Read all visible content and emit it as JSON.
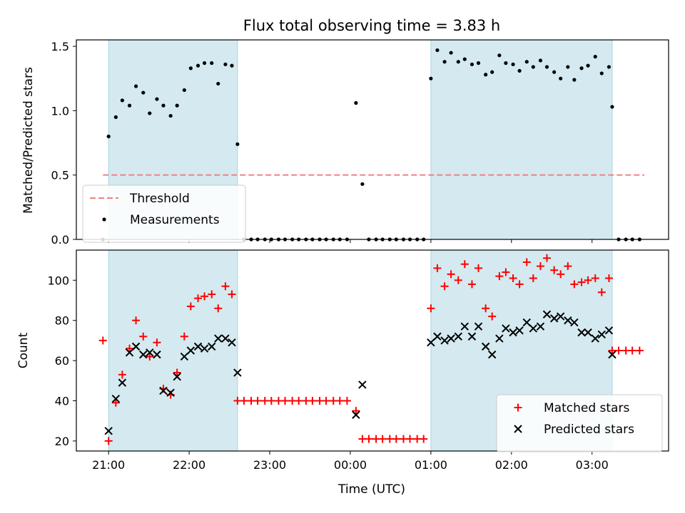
{
  "figure": {
    "title": "Flux total observing time = 3.83 h"
  },
  "chart_data": [
    {
      "type": "scatter",
      "panel": "top",
      "title": "Flux total observing time = 3.83 h",
      "xlabel": "",
      "ylabel": "Matched/Predicted stars",
      "x_unit": "hours since 21:00 UTC",
      "xlim": [
        -0.4,
        6.95
      ],
      "ylim": [
        0,
        1.55
      ],
      "yticks": [
        0.0,
        0.5,
        1.0,
        1.5
      ],
      "ytick_labels": [
        "0.0",
        "0.5",
        "1.0",
        "1.5"
      ],
      "shaded_intervals": [
        [
          0.0,
          1.6
        ],
        [
          4.0,
          6.25
        ]
      ],
      "shade_color": "#d4eaf0",
      "threshold": {
        "name": "Threshold",
        "y": 0.5,
        "x_range": [
          -0.07,
          6.65
        ],
        "color": "#f08080"
      },
      "legend": {
        "position": "lower-left",
        "entries": [
          "Threshold",
          "Measurements"
        ]
      },
      "series": [
        {
          "name": "Measurements",
          "color": "#000000",
          "points": [
            [
              -0.07,
              0.0
            ],
            [
              0.0,
              0.8
            ],
            [
              0.09,
              0.95
            ],
            [
              0.17,
              1.08
            ],
            [
              0.26,
              1.04
            ],
            [
              0.34,
              1.19
            ],
            [
              0.43,
              1.14
            ],
            [
              0.51,
              0.98
            ],
            [
              0.6,
              1.09
            ],
            [
              0.68,
              1.04
            ],
            [
              0.77,
              0.96
            ],
            [
              0.85,
              1.04
            ],
            [
              0.94,
              1.16
            ],
            [
              1.02,
              1.33
            ],
            [
              1.11,
              1.35
            ],
            [
              1.19,
              1.37
            ],
            [
              1.28,
              1.37
            ],
            [
              1.36,
              1.21
            ],
            [
              1.45,
              1.36
            ],
            [
              1.53,
              1.35
            ],
            [
              1.6,
              0.74
            ],
            [
              1.68,
              0.0
            ],
            [
              1.77,
              0.0
            ],
            [
              1.85,
              0.0
            ],
            [
              1.94,
              0.0
            ],
            [
              2.02,
              0.0
            ],
            [
              2.11,
              0.0
            ],
            [
              2.19,
              0.0
            ],
            [
              2.28,
              0.0
            ],
            [
              2.36,
              0.0
            ],
            [
              2.45,
              0.0
            ],
            [
              2.53,
              0.0
            ],
            [
              2.62,
              0.0
            ],
            [
              2.7,
              0.0
            ],
            [
              2.79,
              0.0
            ],
            [
              2.87,
              0.0
            ],
            [
              2.96,
              0.0
            ],
            [
              3.07,
              1.06
            ],
            [
              3.15,
              0.43
            ],
            [
              3.23,
              0.0
            ],
            [
              3.32,
              0.0
            ],
            [
              3.4,
              0.0
            ],
            [
              3.49,
              0.0
            ],
            [
              3.57,
              0.0
            ],
            [
              3.66,
              0.0
            ],
            [
              3.74,
              0.0
            ],
            [
              3.83,
              0.0
            ],
            [
              3.91,
              0.0
            ],
            [
              4.0,
              1.25
            ],
            [
              4.08,
              1.47
            ],
            [
              4.17,
              1.38
            ],
            [
              4.25,
              1.45
            ],
            [
              4.34,
              1.38
            ],
            [
              4.42,
              1.4
            ],
            [
              4.51,
              1.36
            ],
            [
              4.59,
              1.37
            ],
            [
              4.68,
              1.28
            ],
            [
              4.76,
              1.3
            ],
            [
              4.85,
              1.43
            ],
            [
              4.93,
              1.37
            ],
            [
              5.02,
              1.36
            ],
            [
              5.1,
              1.31
            ],
            [
              5.19,
              1.38
            ],
            [
              5.27,
              1.34
            ],
            [
              5.36,
              1.39
            ],
            [
              5.44,
              1.34
            ],
            [
              5.53,
              1.3
            ],
            [
              5.61,
              1.25
            ],
            [
              5.7,
              1.34
            ],
            [
              5.78,
              1.24
            ],
            [
              5.87,
              1.33
            ],
            [
              5.95,
              1.35
            ],
            [
              6.04,
              1.42
            ],
            [
              6.12,
              1.29
            ],
            [
              6.21,
              1.34
            ],
            [
              6.25,
              1.03
            ],
            [
              6.33,
              0.0
            ],
            [
              6.42,
              0.0
            ],
            [
              6.5,
              0.0
            ],
            [
              6.59,
              0.0
            ]
          ]
        }
      ]
    },
    {
      "type": "scatter",
      "panel": "bottom",
      "xlabel": "Time (UTC)",
      "ylabel": "Count",
      "x_unit": "hours since 21:00 UTC",
      "xlim": [
        -0.4,
        6.95
      ],
      "ylim": [
        15,
        115
      ],
      "xticks": [
        0,
        1,
        2,
        3,
        4,
        5,
        6
      ],
      "xtick_labels": [
        "21:00",
        "22:00",
        "23:00",
        "00:00",
        "01:00",
        "02:00",
        "03:00"
      ],
      "yticks": [
        20,
        40,
        60,
        80,
        100
      ],
      "ytick_labels": [
        "20",
        "40",
        "60",
        "80",
        "100"
      ],
      "shaded_intervals": [
        [
          0.0,
          1.6
        ],
        [
          4.0,
          6.25
        ]
      ],
      "legend": {
        "position": "lower-right",
        "entries": [
          "Matched stars",
          "Predicted stars"
        ]
      },
      "series": [
        {
          "name": "Matched stars",
          "marker": "plus",
          "color": "#ff0000",
          "points": [
            [
              -0.07,
              70
            ],
            [
              0.0,
              20
            ],
            [
              0.09,
              39
            ],
            [
              0.17,
              53
            ],
            [
              0.26,
              66
            ],
            [
              0.34,
              80
            ],
            [
              0.43,
              72
            ],
            [
              0.51,
              62
            ],
            [
              0.6,
              69
            ],
            [
              0.68,
              46
            ],
            [
              0.77,
              43
            ],
            [
              0.85,
              54
            ],
            [
              0.94,
              72
            ],
            [
              1.02,
              87
            ],
            [
              1.11,
              91
            ],
            [
              1.19,
              92
            ],
            [
              1.28,
              93
            ],
            [
              1.36,
              86
            ],
            [
              1.45,
              97
            ],
            [
              1.53,
              93
            ],
            [
              1.6,
              40
            ],
            [
              1.68,
              40
            ],
            [
              1.77,
              40
            ],
            [
              1.85,
              40
            ],
            [
              1.94,
              40
            ],
            [
              2.02,
              40
            ],
            [
              2.11,
              40
            ],
            [
              2.19,
              40
            ],
            [
              2.28,
              40
            ],
            [
              2.36,
              40
            ],
            [
              2.45,
              40
            ],
            [
              2.53,
              40
            ],
            [
              2.62,
              40
            ],
            [
              2.7,
              40
            ],
            [
              2.79,
              40
            ],
            [
              2.87,
              40
            ],
            [
              2.96,
              40
            ],
            [
              3.07,
              35
            ],
            [
              3.15,
              21
            ],
            [
              3.23,
              21
            ],
            [
              3.32,
              21
            ],
            [
              3.4,
              21
            ],
            [
              3.49,
              21
            ],
            [
              3.57,
              21
            ],
            [
              3.66,
              21
            ],
            [
              3.74,
              21
            ],
            [
              3.83,
              21
            ],
            [
              3.91,
              21
            ],
            [
              4.0,
              86
            ],
            [
              4.08,
              106
            ],
            [
              4.17,
              97
            ],
            [
              4.25,
              103
            ],
            [
              4.34,
              100
            ],
            [
              4.42,
              108
            ],
            [
              4.51,
              98
            ],
            [
              4.59,
              106
            ],
            [
              4.68,
              86
            ],
            [
              4.76,
              82
            ],
            [
              4.85,
              102
            ],
            [
              4.93,
              104
            ],
            [
              5.02,
              101
            ],
            [
              5.1,
              98
            ],
            [
              5.19,
              109
            ],
            [
              5.27,
              101
            ],
            [
              5.36,
              107
            ],
            [
              5.44,
              111
            ],
            [
              5.53,
              105
            ],
            [
              5.61,
              103
            ],
            [
              5.7,
              107
            ],
            [
              5.78,
              98
            ],
            [
              5.87,
              99
            ],
            [
              5.95,
              100
            ],
            [
              6.04,
              101
            ],
            [
              6.12,
              94
            ],
            [
              6.21,
              101
            ],
            [
              6.25,
              65
            ],
            [
              6.33,
              65
            ],
            [
              6.42,
              65
            ],
            [
              6.5,
              65
            ],
            [
              6.59,
              65
            ]
          ]
        },
        {
          "name": "Predicted stars",
          "marker": "x",
          "color": "#000000",
          "points": [
            [
              0.0,
              25
            ],
            [
              0.09,
              41
            ],
            [
              0.17,
              49
            ],
            [
              0.26,
              64
            ],
            [
              0.34,
              67
            ],
            [
              0.43,
              63
            ],
            [
              0.51,
              64
            ],
            [
              0.6,
              63
            ],
            [
              0.68,
              45
            ],
            [
              0.77,
              44
            ],
            [
              0.85,
              52
            ],
            [
              0.94,
              62
            ],
            [
              1.02,
              65
            ],
            [
              1.11,
              67
            ],
            [
              1.19,
              66
            ],
            [
              1.28,
              67
            ],
            [
              1.36,
              71
            ],
            [
              1.45,
              71
            ],
            [
              1.53,
              69
            ],
            [
              1.6,
              54
            ],
            [
              3.07,
              33
            ],
            [
              3.15,
              48
            ],
            [
              4.0,
              69
            ],
            [
              4.08,
              72
            ],
            [
              4.17,
              70
            ],
            [
              4.25,
              71
            ],
            [
              4.34,
              72
            ],
            [
              4.42,
              77
            ],
            [
              4.51,
              72
            ],
            [
              4.59,
              77
            ],
            [
              4.68,
              67
            ],
            [
              4.76,
              63
            ],
            [
              4.85,
              71
            ],
            [
              4.93,
              76
            ],
            [
              5.02,
              74
            ],
            [
              5.1,
              75
            ],
            [
              5.19,
              79
            ],
            [
              5.27,
              76
            ],
            [
              5.36,
              77
            ],
            [
              5.44,
              83
            ],
            [
              5.53,
              81
            ],
            [
              5.61,
              82
            ],
            [
              5.7,
              80
            ],
            [
              5.78,
              79
            ],
            [
              5.87,
              74
            ],
            [
              5.95,
              74
            ],
            [
              6.04,
              71
            ],
            [
              6.12,
              73
            ],
            [
              6.21,
              75
            ],
            [
              6.25,
              63
            ]
          ]
        }
      ]
    }
  ]
}
